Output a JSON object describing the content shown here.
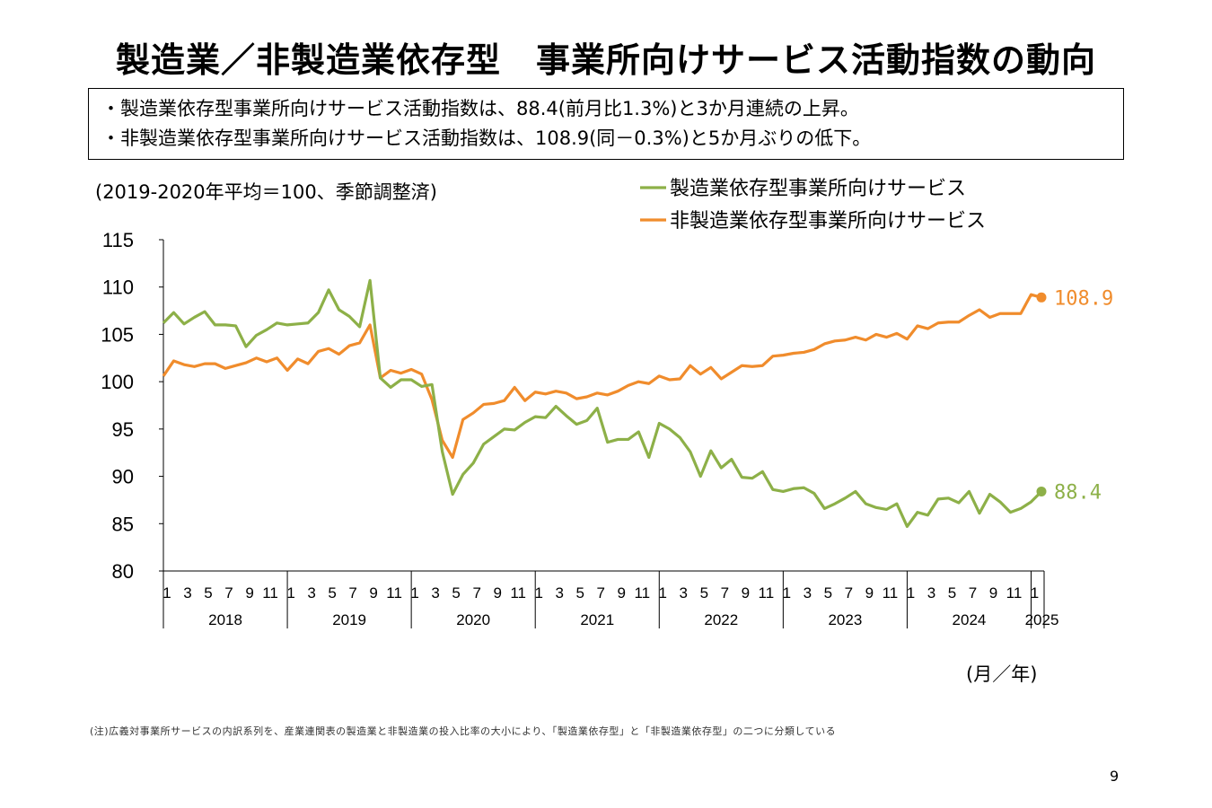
{
  "title": "製造業／非製造業依存型　事業所向けサービス活動指数の動向",
  "summary": [
    "・製造業依存型事業所向けサービス活動指数は、88.4(前月比1.3%)と3か月連続の上昇。",
    "・非製造業依存型事業所向けサービス活動指数は、108.9(同－0.3%)と5か月ぶりの低下。"
  ],
  "base_note": "(2019-2020年平均＝100、季節調整済)",
  "unit_label": "(月／年)",
  "footnote": "(注)広義対事業所サービスの内訳系列を、産業連関表の製造業と非製造業の投入比率の大小により、「製造業依存型」と「非製造業依存型」の二つに分類している",
  "page_number": "9",
  "colors": {
    "manufacturing": "#8db048",
    "non_manufacturing": "#f08c2c"
  },
  "chart_data": {
    "type": "line",
    "title": "",
    "xlabel": "(月／年)",
    "ylabel": "",
    "ylim": [
      80,
      115
    ],
    "yticks": [
      80,
      85,
      90,
      95,
      100,
      105,
      110,
      115
    ],
    "month_tick_labels": [
      "1",
      "3",
      "5",
      "7",
      "9",
      "11"
    ],
    "year_labels": [
      "2018",
      "2019",
      "2020",
      "2021",
      "2022",
      "2023",
      "2024",
      "2025"
    ],
    "legend_position": "top-right",
    "grid": false,
    "x_start": "2018-01",
    "x_end": "2025-01",
    "series": [
      {
        "name": "製造業依存型事業所向けサービス",
        "color": "#8db048",
        "end_label": "88.4",
        "values": [
          106.2,
          107.3,
          106.1,
          106.8,
          107.4,
          106.0,
          106.0,
          105.9,
          103.7,
          104.9,
          105.5,
          106.2,
          106.0,
          106.1,
          106.2,
          107.3,
          109.7,
          107.6,
          106.9,
          105.8,
          110.7,
          100.4,
          99.4,
          100.2,
          100.2,
          99.5,
          99.7,
          92.6,
          88.1,
          90.2,
          91.4,
          93.4,
          94.2,
          95.0,
          94.9,
          95.7,
          96.3,
          96.2,
          97.4,
          96.4,
          95.5,
          95.9,
          97.2,
          93.6,
          93.9,
          93.9,
          94.7,
          92.0,
          95.6,
          95.0,
          94.1,
          92.6,
          90.0,
          92.7,
          90.9,
          91.8,
          89.9,
          89.8,
          90.5,
          88.6,
          88.4,
          88.7,
          88.8,
          88.2,
          86.6,
          87.1,
          87.7,
          88.4,
          87.1,
          86.7,
          86.5,
          87.1,
          84.7,
          86.2,
          85.9,
          87.6,
          87.7,
          87.2,
          88.4,
          86.1,
          88.1,
          87.3,
          86.2,
          86.6,
          87.3,
          88.4
        ]
      },
      {
        "name": "非製造業依存型事業所向けサービス",
        "color": "#f08c2c",
        "end_label": "108.9",
        "values": [
          100.6,
          102.2,
          101.8,
          101.6,
          101.9,
          101.9,
          101.4,
          101.7,
          102.0,
          102.5,
          102.1,
          102.5,
          101.2,
          102.4,
          101.9,
          103.2,
          103.5,
          102.9,
          103.8,
          104.1,
          106.0,
          100.4,
          101.2,
          100.9,
          101.3,
          100.8,
          98.1,
          93.8,
          92.0,
          96.0,
          96.7,
          97.6,
          97.7,
          98.0,
          99.4,
          98.0,
          98.9,
          98.7,
          99.0,
          98.8,
          98.2,
          98.4,
          98.8,
          98.6,
          99.0,
          99.6,
          100.0,
          99.8,
          100.6,
          100.2,
          100.3,
          101.7,
          100.8,
          101.5,
          100.3,
          101.0,
          101.7,
          101.6,
          101.7,
          102.7,
          102.8,
          103.0,
          103.1,
          103.4,
          104.0,
          104.3,
          104.4,
          104.7,
          104.4,
          105.0,
          104.7,
          105.1,
          104.5,
          105.9,
          105.6,
          106.2,
          106.3,
          106.3,
          107.0,
          107.6,
          106.8,
          107.2,
          107.2,
          107.2,
          109.2,
          108.9
        ]
      }
    ]
  }
}
